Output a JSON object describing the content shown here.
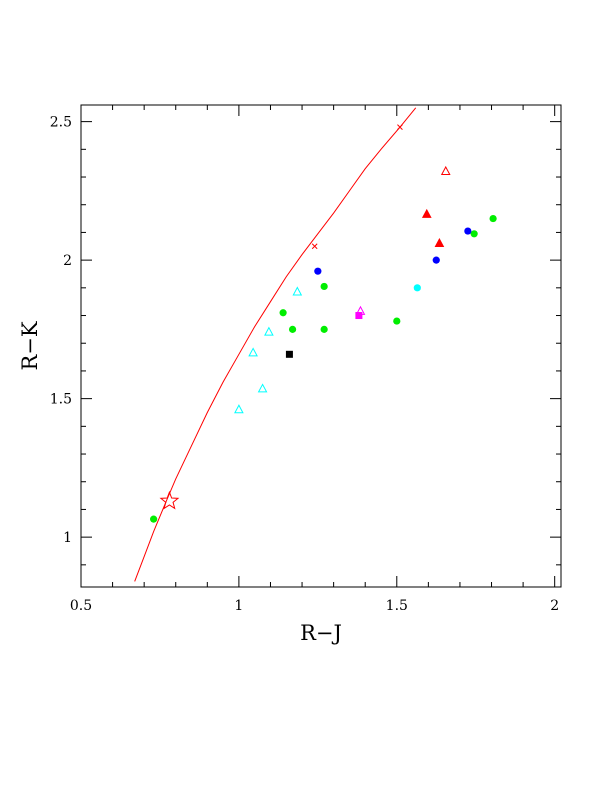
{
  "chart_data": {
    "type": "scatter",
    "xlabel": "R−J",
    "ylabel": "R−K",
    "xlim": [
      0.5,
      2.02
    ],
    "ylim": [
      0.82,
      2.56
    ],
    "xticks": [
      {
        "value": 0.5,
        "label": "0.5"
      },
      {
        "value": 1.0,
        "label": "1"
      },
      {
        "value": 1.5,
        "label": "1.5"
      },
      {
        "value": 2.0,
        "label": "2"
      }
    ],
    "yticks": [
      {
        "value": 1.0,
        "label": "1"
      },
      {
        "value": 1.5,
        "label": "1.5"
      },
      {
        "value": 2.0,
        "label": "2"
      },
      {
        "value": 2.5,
        "label": "2.5"
      }
    ],
    "x_minor_step": 0.1,
    "y_minor_step": 0.1,
    "grid": false,
    "curve": {
      "color": "#ff0000",
      "x": [
        0.67,
        0.7,
        0.73,
        0.77,
        0.8,
        0.85,
        0.9,
        0.95,
        1.0,
        1.05,
        1.1,
        1.15,
        1.2,
        1.24,
        1.3,
        1.35,
        1.4,
        1.45,
        1.51,
        1.56
      ],
      "y": [
        0.84,
        0.93,
        1.02,
        1.13,
        1.21,
        1.33,
        1.45,
        1.56,
        1.66,
        1.76,
        1.85,
        1.94,
        2.02,
        2.08,
        2.17,
        2.25,
        2.33,
        2.4,
        2.48,
        2.55
      ],
      "markers": [
        {
          "x": 1.24,
          "y": 2.05
        },
        {
          "x": 1.51,
          "y": 2.48
        }
      ]
    },
    "points": [
      {
        "x": 0.78,
        "y": 1.13,
        "marker": "star",
        "color": "#ff0000"
      },
      {
        "x": 0.73,
        "y": 1.065,
        "marker": "circle-filled",
        "color": "#00ee00"
      },
      {
        "x": 1.16,
        "y": 1.66,
        "marker": "square-filled",
        "color": "#000000"
      },
      {
        "x": 1.14,
        "y": 1.81,
        "marker": "circle-filled",
        "color": "#00ee00"
      },
      {
        "x": 1.17,
        "y": 1.75,
        "marker": "circle-filled",
        "color": "#00ee00"
      },
      {
        "x": 1.27,
        "y": 1.75,
        "marker": "circle-filled",
        "color": "#00ee00"
      },
      {
        "x": 1.27,
        "y": 1.905,
        "marker": "circle-filled",
        "color": "#00ee00"
      },
      {
        "x": 1.5,
        "y": 1.78,
        "marker": "circle-filled",
        "color": "#00ee00"
      },
      {
        "x": 1.745,
        "y": 2.095,
        "marker": "circle-filled",
        "color": "#00ee00"
      },
      {
        "x": 1.805,
        "y": 2.15,
        "marker": "circle-filled",
        "color": "#00ee00"
      },
      {
        "x": 1.25,
        "y": 1.96,
        "marker": "circle-filled",
        "color": "#0000ff"
      },
      {
        "x": 1.625,
        "y": 2.0,
        "marker": "circle-filled",
        "color": "#0000ff"
      },
      {
        "x": 1.725,
        "y": 2.105,
        "marker": "circle-filled",
        "color": "#0000ff"
      },
      {
        "x": 1.565,
        "y": 1.9,
        "marker": "circle-filled",
        "color": "#00ffff"
      },
      {
        "x": 1.38,
        "y": 1.8,
        "marker": "square-filled",
        "color": "#ff00ff"
      },
      {
        "x": 1.385,
        "y": 1.815,
        "marker": "triangle-open",
        "color": "#ff00ff"
      },
      {
        "x": 1.0,
        "y": 1.46,
        "marker": "triangle-open",
        "color": "#00ffff"
      },
      {
        "x": 1.075,
        "y": 1.535,
        "marker": "triangle-open",
        "color": "#00ffff"
      },
      {
        "x": 1.045,
        "y": 1.665,
        "marker": "triangle-open",
        "color": "#00ffff"
      },
      {
        "x": 1.095,
        "y": 1.74,
        "marker": "triangle-open",
        "color": "#00ffff"
      },
      {
        "x": 1.185,
        "y": 1.885,
        "marker": "triangle-open",
        "color": "#00ffff"
      },
      {
        "x": 1.595,
        "y": 2.165,
        "marker": "triangle-filled",
        "color": "#ff0000"
      },
      {
        "x": 1.635,
        "y": 2.06,
        "marker": "triangle-filled",
        "color": "#ff0000"
      },
      {
        "x": 1.655,
        "y": 2.32,
        "marker": "triangle-open",
        "color": "#ff0000"
      }
    ]
  }
}
